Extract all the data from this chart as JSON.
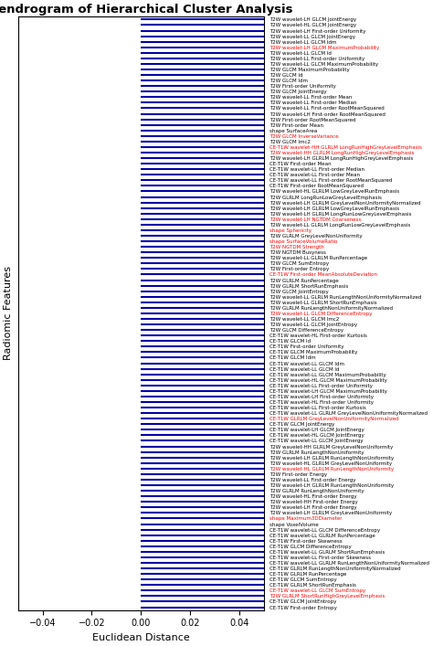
{
  "title": "Dendrogram of Hierarchical Cluster Analysis",
  "xlabel": "Euclidean Distance",
  "ylabel": "Radiomic Features",
  "figsize": [
    4.74,
    7.07
  ],
  "dpi": 100,
  "tick_fontsize": 4.0,
  "axis_label_fontsize": 8,
  "title_fontsize": 9.5,
  "vline_x": 7.5,
  "labels": [
    "T2W wavelet-HH GLRLM LongRunHighGreyLevelEmphasis",
    "T2W wavelet-LH GLRLM LongRunHighGreyLevelEmphasis",
    "CE-T1W wavelet-HH GLRLM LongRunHighGreyLevelEmphasis",
    "CE-T1W wavelet-HL First-order Uniformity",
    "CE-T1W wavelet-LH First-order Uniformity",
    "CE-T1W wavelet-HL GLCM MaximumProbability",
    "CE-T1W wavelet-LH GLCM MaximumProbability",
    "CE-T1W wavelet-LL GLCM MaximumProbability",
    "CE-T1W wavelet-LL First-order Uniformity",
    "CE-T1W wavelet-HL GLCM JointEnergy",
    "CE-T1W wavelet-LH GLCM JointEnergy",
    "CE-T1W wavelet-LL GLCM JointEnergy",
    "CE-T1W GLCM JointEnergy",
    "CE-T1W wavelet-LL GLRLM GreyLevelNonUniformityNormalized",
    "CE-T1W wavelet-LL First-order Kurtosis",
    "CE-T1W GLRLM GreyLevelNonUniformityNormalized",
    "CE-T1W GLCM Idm",
    "CE-T1W GLCM Id",
    "CE-T1W GLCM MaximumProbability",
    "CE-T1W First-order Uniformity",
    "CE-T1W wavelet-LL GLCM Idm",
    "CE-T1W wavelet-LL GLCM Id",
    "CE-T1W wavelet-HL First-order Kurtosis",
    "T2W wavelet-LH GLRLM LongRunLowGreyLevelEmphasis",
    "T2W GLRLM LongRunLowGreyLevelEmphasis",
    "T2W wavelet-LL GLRLM LongRunLowGreyLevelEmphasis",
    "T2W wavelet-HL GLRLM LowGreyLevelRunEmphasis",
    "T2W wavelet-LH GLRLM LowGreyLevelRunEmphasis",
    "T2W wavelet-LH NGTDM Coarseness",
    "T2W wavelet-LH GLRLM GreyLevelNonUniformityNormalized",
    "T2W GLCM Idm",
    "T2W GLCM Id",
    "T2W GLCM MaximumProbability",
    "T2W GLCM JointEnergy",
    "T2W First-order Uniformity",
    "T2W wavelet-HL GLCM JointEnergy",
    "T2W wavelet-LH GLCM JointEnergy",
    "T2W wavelet-LL GLCM JointEnergy",
    "T2W wavelet-LL First-order Uniformity",
    "T2W wavelet-LH First-order Uniformity",
    "T2W wavelet-LL GLCM MaximumProbability",
    "T2W wavelet-LH GLCM MaximumProbability",
    "T2W wavelet-LL GLCM Idm",
    "T2W wavelet-LL GLCM Id",
    "CE-T1W wavelet-LL First-order Median",
    "CE-T1W wavelet-LL First-order RootMeanSquared",
    "CE-T1W wavelet-LL First-order Mean",
    "CE-T1W First-order RootMeanSquared",
    "CE-T1W First-order Mean",
    "T2W wavelet-LL First-order Median",
    "T2W First-order RootMeanSquared",
    "T2W wavelet-LL First-order RootMeanSquared",
    "T2W wavelet-LH First-order RootMeanSquared",
    "T2W wavelet-LL First-order Mean",
    "T2W First-order Mean",
    "T2W GLRLM ShortRunHighGreyLevelEmphasis",
    "CE-T1W GLCM SumEntropy",
    "CE-T1W wavelet-LL GLCM SumEntropy",
    "CE-T1W First-order Entropy",
    "CE-T1W GLCM JointEntropy",
    "CE-T1W GLRLM RunPercentage",
    "CE-T1W GLRLM ShortRunEmphasis",
    "CE-T1W GLRLM RunLengthNonUniformityNormalized",
    "CE-T1W wavelet-LL GLRLM ShortRunEmphasis",
    "CE-T1W wavelet-LL GLRLM RunLengthNonUniformityNormalized",
    "CE-T1W wavelet-LL GLRLM RunPercentage",
    "CE-T1W GLCM DifferenceEntropy",
    "CE-T1W wavelet-LL GLCM DifferenceEntropy",
    "CE-T1W wavelet-LL First-order Skewness",
    "CE-T1W First-order Skewness",
    "CE-T1W First-order MeanAbsoluteDeviation",
    "T2W GLCM SumEntropy",
    "T2W First-order Entropy",
    "T2W GLCM JointEntropy",
    "T2W wavelet-LL GLRLM RunPercentage",
    "T2W GLRLM ShortRunEmphasis",
    "T2W wavelet-LL GLRLM RunLengthNonUniformityNormalized",
    "T2W GLRLM RunPercentage",
    "T2W GLRLM RunLengthNonUniformityNormalized",
    "T2W wavelet-LL GLCM JointEntropy",
    "T2W wavelet-LL GLRLM ShortRunEmphasis",
    "T2W wavelet-LL GLCM Imc2",
    "T2W wavelet-LL GLCM DifferenceEntropy",
    "T2W GLCM DifferenceEntropy",
    "T2W GLCM Imc2",
    "T2W GLCM InverseVariance",
    "shape SurfaceArea",
    "shape VoxelVolume",
    "shape Maximum3DDiameter",
    "T2W wavelet-HH First-order Energy",
    "T2W wavelet-HL First-order Energy",
    "T2W wavelet-LH First-order Energy",
    "T2W wavelet-LH GLRLM GreyLevelNonUniformity",
    "T2W wavelet-LH GLRLM RunLengthNonUniformity",
    "T2W GLRLM RunLengthNonUniformity",
    "T2W wavelet-LH GLRLM RunLengthNonUniformity",
    "T2W wavelet-HL GLRLM RunLengthNonUniformity",
    "T2W GLRLM RunLengthNonUniformity",
    "T2W wavelet-HH GLRLM GreyLevelNonUniformity",
    "T2W wavelet-HL GLRLM GreyLevelNonUniformity",
    "T2W wavelet-LL First-order Energy",
    "T2W First-order Energy",
    "T2W GLRLM GreyLevelNonUniformity",
    "T2W NGTDM Busyness",
    "T2W NGTDM Strength",
    "shape SurfaceVolumeRatio",
    "shape Sphericity"
  ],
  "red_labels": [
    "T2W wavelet-HH GLRLM LongRunHighGreyLevelEmphasis",
    "CE-T1W wavelet-HH GLRLM LongRunHighGreyLevelEmphasis",
    "CE-T1W GLRLM GreyLevelNonUniformityNormalized",
    "T2W wavelet-LH NGTDM Coarseness",
    "T2W wavelet-LH GLCM MaximumProbability",
    "T2W GLRLM ShortRunHighGreyLevelEmphasis",
    "CE-T1W wavelet-LL GLCM SumEntropy",
    "CE-T1W First-order MeanAbsoluteDeviation",
    "T2W wavelet-LL GLCM DifferenceEntropy",
    "T2W GLCM InverseVariance",
    "shape Maximum3DDiameter",
    "T2W wavelet-HL GLRLM RunLengthNonUniformity",
    "T2W NGTDM Strength",
    "shape SurfaceVolumeRatio",
    "shape Sphericity"
  ],
  "leaf_colors": {
    "group0": {
      "color": "#cc44cc",
      "indices": [
        0,
        1,
        2
      ]
    },
    "group1": {
      "color": "#22aaaa",
      "indices": [
        3,
        4,
        5,
        6,
        7,
        8,
        9,
        10,
        11,
        12,
        13,
        14,
        15,
        16,
        17,
        18,
        19,
        20,
        21,
        22
      ]
    },
    "group2": {
      "color": "#cc2222",
      "indices": [
        23,
        24,
        25,
        26,
        27,
        28,
        29
      ]
    },
    "group3": {
      "color": "#228844",
      "indices": [
        30,
        31,
        32,
        33,
        34,
        35,
        36,
        37,
        38,
        39,
        40,
        41,
        42,
        43
      ]
    },
    "group4": {
      "color": "#000000",
      "indices": [
        44,
        45,
        46,
        47,
        48
      ]
    },
    "group4b": {
      "color": "#999900",
      "indices": [
        49,
        50,
        51,
        52,
        53,
        54
      ]
    },
    "group5": {
      "color": "#aa44aa",
      "indices": [
        55,
        56,
        57,
        58,
        59,
        60,
        61,
        62,
        63,
        64,
        65,
        66,
        67,
        68,
        69
      ]
    },
    "group6": {
      "color": "#22bbbb",
      "indices": [
        70,
        71,
        72,
        73,
        74,
        75,
        76,
        77,
        78,
        79,
        80,
        81,
        82,
        83
      ]
    },
    "group7": {
      "color": "#cc2222",
      "indices": [
        84,
        85,
        86
      ]
    },
    "group8": {
      "color": "#228844",
      "indices": [
        87,
        88,
        89,
        90,
        91,
        92,
        93,
        94,
        95,
        96,
        97,
        98,
        99,
        100,
        101
      ]
    },
    "group9": {
      "color": "#0000aa",
      "indices": [
        102,
        103,
        104,
        105
      ]
    }
  }
}
